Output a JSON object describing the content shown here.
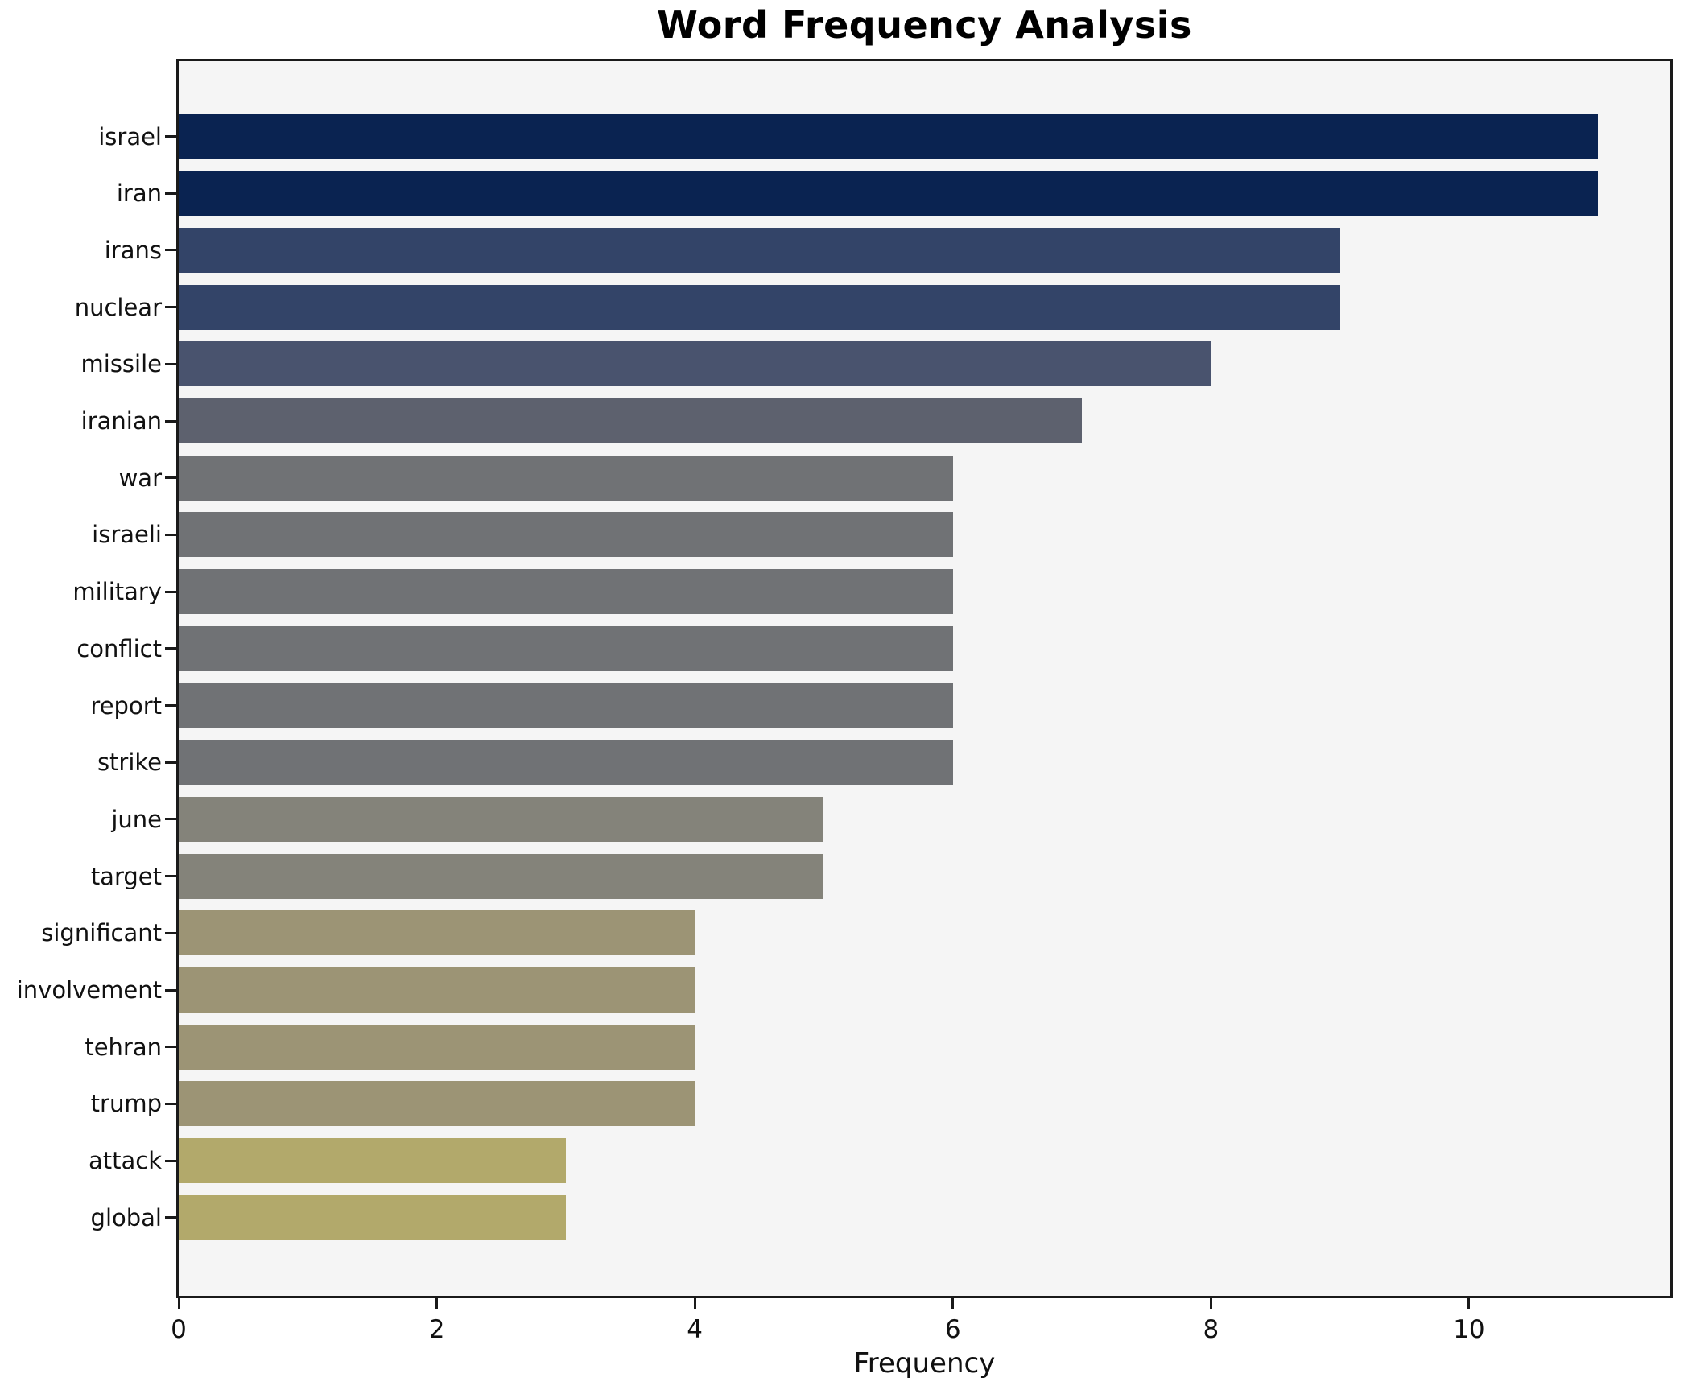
{
  "chart_data": {
    "type": "bar",
    "orientation": "horizontal",
    "title": "Word Frequency Analysis",
    "xlabel": "Frequency",
    "ylabel": "",
    "xlim": [
      0,
      11.56
    ],
    "xticks": [
      0,
      2,
      4,
      6,
      8,
      10
    ],
    "grid": false,
    "legend": "none",
    "plot_background": "#f5f5f5",
    "spine_color": "#1a1a1a",
    "text_color": "#111111",
    "categories": [
      "israel",
      "iran",
      "irans",
      "nuclear",
      "missile",
      "iranian",
      "war",
      "israeli",
      "military",
      "conflict",
      "report",
      "strike",
      "june",
      "target",
      "significant",
      "involvement",
      "tehran",
      "trump",
      "attack",
      "global"
    ],
    "values": [
      11,
      11,
      9,
      9,
      8,
      7,
      6,
      6,
      6,
      6,
      6,
      6,
      5,
      5,
      4,
      4,
      4,
      4,
      3,
      3
    ],
    "bar_colors": [
      "#0a2351",
      "#0a2351",
      "#334468",
      "#334468",
      "#49536e",
      "#5d616e",
      "#707275",
      "#707275",
      "#707275",
      "#707275",
      "#707275",
      "#707275",
      "#84837a",
      "#84837a",
      "#9c9475",
      "#9c9475",
      "#9c9475",
      "#9c9475",
      "#b2a96b",
      "#b2a96b"
    ]
  }
}
